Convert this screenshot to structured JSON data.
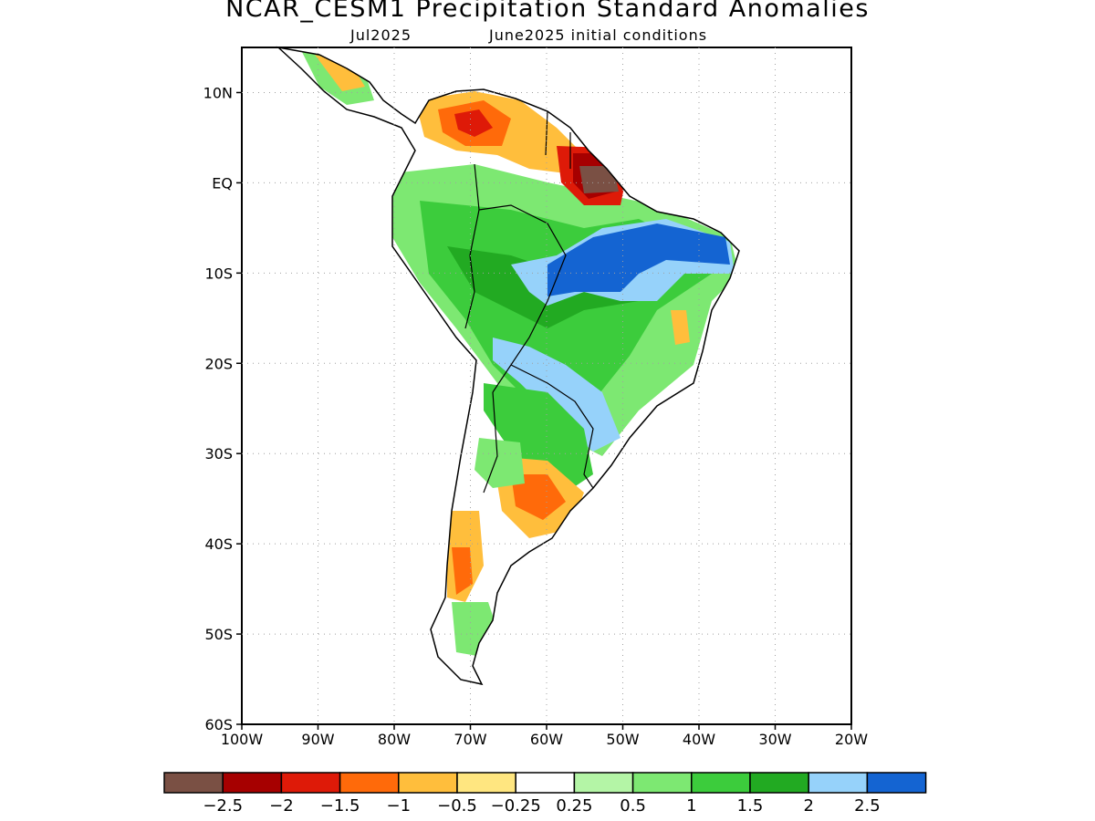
{
  "title": "NCAR_CESM1 Precipitation Standard Anomalies",
  "subtitle_left": "Jul2025",
  "subtitle_right": "June2025 initial conditions",
  "map": {
    "lon_range": [
      -100,
      -20
    ],
    "lat_range": [
      -60,
      15
    ],
    "lon_ticks": [
      "100W",
      "90W",
      "80W",
      "70W",
      "60W",
      "50W",
      "40W",
      "30W",
      "20W"
    ],
    "lat_ticks": [
      "10N",
      "EQ",
      "10S",
      "20S",
      "30S",
      "40S",
      "50S",
      "60S"
    ],
    "gridlines": "dotted"
  },
  "colorbar": {
    "colors": [
      "#7a5044",
      "#a60000",
      "#de1a08",
      "#ff6a0a",
      "#ffbe3c",
      "#ffe680",
      "#ffffff",
      "#b4f5a6",
      "#7de872",
      "#3ccc3c",
      "#22aa22",
      "#96d2fa",
      "#1464d2"
    ],
    "labels": [
      "−2.5",
      "−2",
      "−1.5",
      "−1",
      "−0.5",
      "−0.25",
      "0.25",
      "0.5",
      "1",
      "1.5",
      "2",
      "2.5"
    ]
  },
  "colors": {
    "coast": "#000000",
    "grid": "#a0a0a0"
  }
}
